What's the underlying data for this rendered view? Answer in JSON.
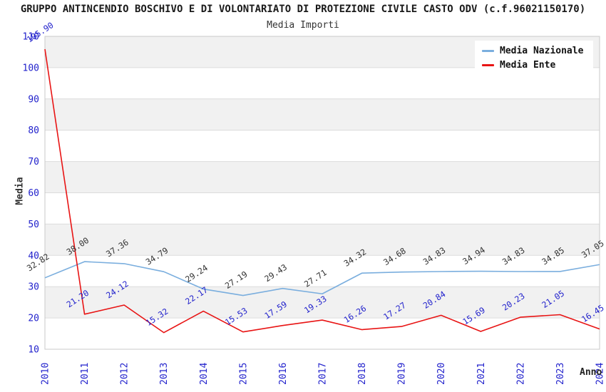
{
  "header": {
    "title": "GRUPPO ANTINCENDIO BOSCHIVO E DI VOLONTARIATO DI PROTEZIONE CIVILE CASTO ODV (c.f.96021150170)",
    "subtitle": "Media Importi"
  },
  "colors": {
    "band": "#f1f1f1",
    "grid": "#dcdcdc",
    "spine": "#c9c9c9",
    "axis_tick_label": "#2222cc",
    "axis_title": "#333333",
    "title_text": "#1a1a1a"
  },
  "chart_data": {
    "type": "line",
    "title": "Media Importi",
    "xlabel": "Anno",
    "ylabel": "Media",
    "x": [
      "2010",
      "2011",
      "2012",
      "2013",
      "2014",
      "2015",
      "2016",
      "2017",
      "2018",
      "2019",
      "2020",
      "2021",
      "2022",
      "2023",
      "2024"
    ],
    "ylim": [
      10,
      110
    ],
    "ytick_step": 10,
    "grid": true,
    "legend_position": "top-right",
    "series": [
      {
        "name": "Media Nazionale",
        "color": "#7aaede",
        "label_color": "#333333",
        "values": [
          32.82,
          38.0,
          37.36,
          34.79,
          29.24,
          27.19,
          29.43,
          27.71,
          34.32,
          34.68,
          34.83,
          34.94,
          34.83,
          34.85,
          37.05
        ]
      },
      {
        "name": "Media Ente",
        "color": "#e81414",
        "label_color": "#2222cc",
        "values": [
          105.9,
          21.2,
          24.12,
          15.32,
          22.17,
          15.53,
          17.59,
          19.33,
          16.26,
          17.27,
          20.84,
          15.69,
          20.23,
          21.05,
          16.45
        ]
      }
    ]
  }
}
